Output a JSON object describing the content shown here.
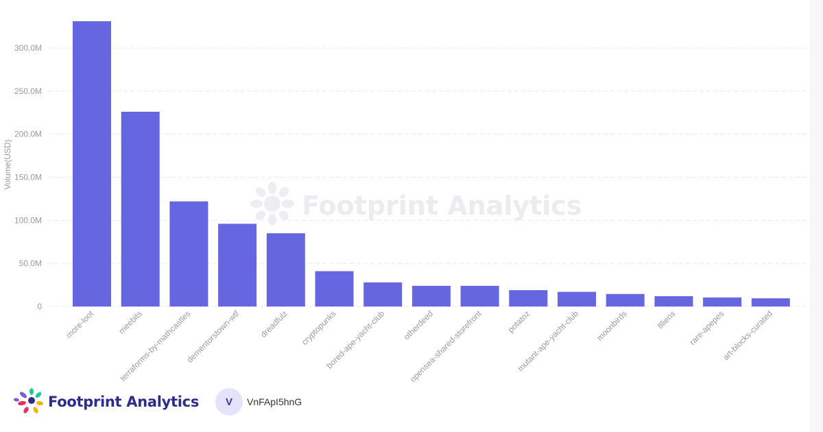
{
  "chart_data": {
    "type": "bar",
    "title": "",
    "xlabel": "",
    "ylabel": "Volume(USD)",
    "ylim": [
      0,
      331000000
    ],
    "yticks": [
      {
        "value": 0,
        "label": "0"
      },
      {
        "value": 50000000,
        "label": "50.0M"
      },
      {
        "value": 100000000,
        "label": "100.0M"
      },
      {
        "value": 150000000,
        "label": "150.0M"
      },
      {
        "value": 200000000,
        "label": "200.0M"
      },
      {
        "value": 250000000,
        "label": "250.0M"
      },
      {
        "value": 300000000,
        "label": "300.0M"
      }
    ],
    "grid": true,
    "bar_color": "#6666e0",
    "categories": [
      "more-loot",
      "meebits",
      "terraforms-by-mathcastles",
      "dementorstown-wtf",
      "dreadfulz",
      "cryptopunks",
      "bored-ape-yacht-club",
      "otherdeed",
      "opensea-shared-storefront",
      "potatoz",
      "mutant-ape-yacht-club",
      "moonbirds",
      "8liens",
      "rare-apepes",
      "art-blocks-curated"
    ],
    "values": [
      331000000,
      226000000,
      122000000,
      96000000,
      85000000,
      41000000,
      28000000,
      24000000,
      24000000,
      19000000,
      17000000,
      14500000,
      12000000,
      10500000,
      9500000
    ]
  },
  "watermark": {
    "text": "Footprint Analytics"
  },
  "footer": {
    "brand_name": "Footprint Analytics",
    "user_initial": "V",
    "user_name": "VnFApI5hnG"
  },
  "colors": {
    "bar": "#6666e0",
    "brand_text": "#2d2b8c",
    "avatar_bg": "#e4e3fb"
  }
}
